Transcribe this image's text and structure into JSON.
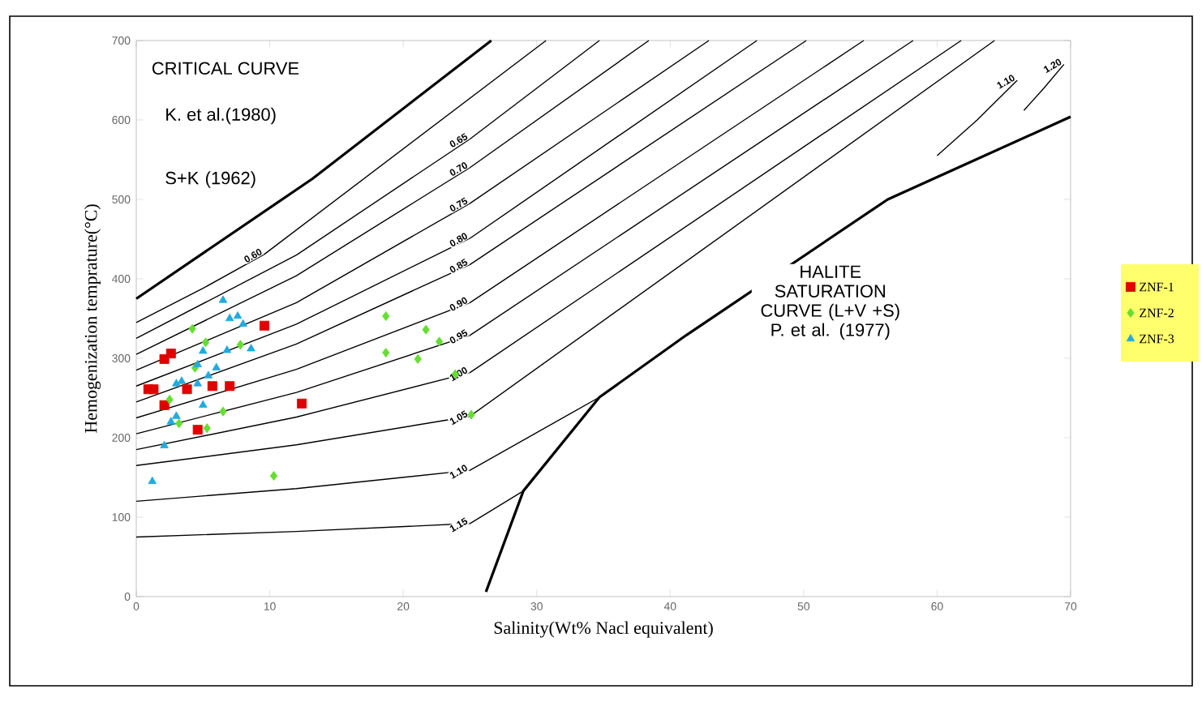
{
  "chart_data": {
    "type": "scatter",
    "xlabel": "Salinity(Wt%  Nacl equivalent)",
    "ylabel": "Hemogenization temprature(°C)",
    "xlim": [
      0,
      70
    ],
    "ylim": [
      0,
      700
    ],
    "xticks": [
      0,
      10,
      20,
      30,
      40,
      50,
      60,
      70
    ],
    "yticks": [
      0,
      100,
      200,
      300,
      400,
      500,
      600,
      700
    ],
    "legend": "right",
    "annotations": [
      "CRITICAL  CURVE",
      "K. et al.(1980)",
      "S+K (1962)",
      "HALITE SATURATION CURVE (L+V +S) P. et al. (1977)"
    ],
    "series": [
      {
        "type": "line",
        "marker": "none",
        "color": "#000000",
        "x": [
          0,
          13.2,
          26.6
        ],
        "values": [
          375,
          526,
          700
        ]
      },
      {
        "type": "line",
        "marker": "none",
        "color": "#000000",
        "x": [
          26.2,
          29,
          34.7,
          41.2,
          56.3,
          70
        ],
        "values": [
          6,
          133,
          251,
          329,
          500,
          604
        ]
      },
      {
        "type": "line",
        "marker": "none",
        "color": "#000000",
        "name": "0.60",
        "x": [
          0,
          5,
          9.6,
          30.7
        ],
        "values": [
          345,
          388,
          431,
          700
        ]
      },
      {
        "type": "line",
        "marker": "none",
        "color": "#000000",
        "name": "0.65",
        "x": [
          0,
          12,
          25,
          34.7
        ],
        "values": [
          325,
          430,
          576,
          700
        ]
      },
      {
        "type": "line",
        "marker": "none",
        "color": "#000000",
        "name": "0.70",
        "x": [
          0,
          12,
          25,
          38.4
        ],
        "values": [
          305,
          404,
          540,
          700
        ]
      },
      {
        "type": "line",
        "marker": "none",
        "color": "#000000",
        "name": "0.75",
        "x": [
          0,
          12,
          25,
          42.9
        ],
        "values": [
          285,
          370,
          495,
          700
        ]
      },
      {
        "type": "line",
        "marker": "none",
        "color": "#000000",
        "name": "0.80",
        "x": [
          0,
          12,
          25,
          46.5
        ],
        "values": [
          265,
          343,
          451,
          700
        ]
      },
      {
        "type": "line",
        "marker": "none",
        "color": "#000000",
        "name": "0.85",
        "x": [
          0,
          12,
          25,
          50.2
        ],
        "values": [
          245,
          318,
          418,
          700
        ]
      },
      {
        "type": "line",
        "marker": "none",
        "color": "#000000",
        "name": "0.90",
        "x": [
          0,
          12,
          25,
          54.5
        ],
        "values": [
          225,
          286,
          370,
          700
        ]
      },
      {
        "type": "line",
        "marker": "none",
        "color": "#000000",
        "name": "0.95",
        "x": [
          0,
          12,
          25,
          58.2
        ],
        "values": [
          205,
          257,
          329,
          700
        ]
      },
      {
        "type": "line",
        "marker": "none",
        "color": "#000000",
        "name": "1.00",
        "x": [
          0,
          12,
          25,
          61.8
        ],
        "values": [
          185,
          226,
          282,
          700
        ]
      },
      {
        "type": "line",
        "marker": "none",
        "color": "#000000",
        "name": "1.05",
        "x": [
          0,
          12,
          25,
          64.3
        ],
        "values": [
          165,
          191,
          227,
          700
        ]
      },
      {
        "type": "line",
        "marker": "none",
        "color": "#000000",
        "name": "1.10",
        "x": [
          0,
          12,
          25,
          34.7
        ],
        "values": [
          120,
          136,
          159,
          251
        ]
      },
      {
        "type": "line",
        "marker": "none",
        "color": "#000000",
        "name": "1.15",
        "x": [
          0,
          12,
          25,
          29
        ],
        "values": [
          75,
          82,
          92,
          133
        ]
      },
      {
        "type": "line",
        "marker": "none",
        "color": "#000000",
        "name": "1.10",
        "x": [
          60,
          63,
          66
        ],
        "values": [
          555,
          600,
          650
        ]
      },
      {
        "type": "line",
        "marker": "none",
        "color": "#000000",
        "name": "1.20",
        "x": [
          66.5,
          68,
          69.5
        ],
        "values": [
          612,
          640,
          670
        ]
      },
      {
        "marker": "square",
        "color": "#e00000",
        "name": "ZNF-1",
        "x": [
          0.9,
          1.3,
          2.1,
          2.6,
          2.1,
          3.8,
          5.7,
          7.0,
          4.6,
          9.6,
          12.4
        ],
        "values": [
          261,
          261,
          299,
          306,
          241,
          261,
          265,
          265,
          210,
          341,
          243
        ]
      },
      {
        "marker": "diamond",
        "color": "#66dd33",
        "name": "ZNF-2",
        "x": [
          4.2,
          5.2,
          7.8,
          4.4,
          2.5,
          3.2,
          5.3,
          6.5,
          10.3,
          18.7,
          21.7,
          22.7,
          18.7,
          21.1,
          23.9,
          25.1
        ],
        "values": [
          337,
          320,
          317,
          288,
          248,
          218,
          212,
          233,
          152,
          353,
          336,
          321,
          307,
          299,
          280,
          229
        ]
      },
      {
        "marker": "triangle",
        "color": "#22aadd",
        "name": "ZNF-3",
        "x": [
          6.5,
          7.6,
          8.0,
          7.0,
          8.6,
          6.8,
          5.0,
          4.6,
          6.0,
          5.4,
          4.6,
          3.4,
          3.0,
          5.0,
          3.0,
          2.6,
          2.1,
          1.2
        ],
        "values": [
          373,
          353,
          343,
          350,
          312,
          310,
          309,
          292,
          288,
          278,
          268,
          271,
          268,
          241,
          227,
          220,
          190,
          145
        ]
      }
    ]
  }
}
